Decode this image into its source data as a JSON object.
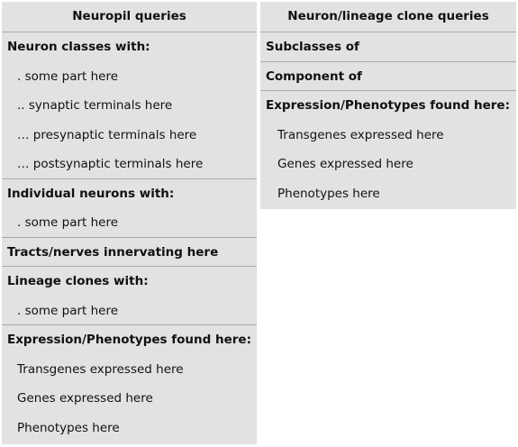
{
  "left": {
    "header": "Neuropil queries",
    "rows": [
      {
        "label": "Neuron classes with:",
        "kind": "bold"
      },
      {
        "label": ". some part here",
        "kind": "sub"
      },
      {
        "label": ".. synaptic terminals here",
        "kind": "sub"
      },
      {
        "label": "… presynaptic terminals here",
        "kind": "sub"
      },
      {
        "label": "… postsynaptic terminals here",
        "kind": "sub"
      },
      {
        "label": "Individual neurons with:",
        "kind": "bold"
      },
      {
        "label": ". some part here",
        "kind": "sub"
      },
      {
        "label": "Tracts/nerves innervating here",
        "kind": "bold"
      },
      {
        "label": "Lineage clones with:",
        "kind": "bold"
      },
      {
        "label": ". some part here",
        "kind": "sub"
      },
      {
        "label": "Expression/Phenotypes found here:",
        "kind": "bold"
      },
      {
        "label": "Transgenes expressed here",
        "kind": "sub"
      },
      {
        "label": "Genes expressed here",
        "kind": "sub"
      },
      {
        "label": "Phenotypes here",
        "kind": "sub"
      }
    ]
  },
  "right": {
    "header": "Neuron/lineage clone queries",
    "rows": [
      {
        "label": "Subclasses of",
        "kind": "bold"
      },
      {
        "label": "Component of",
        "kind": "bold"
      },
      {
        "label": "Expression/Phenotypes found here:",
        "kind": "bold"
      },
      {
        "label": "Transgenes expressed here",
        "kind": "sub"
      },
      {
        "label": "Genes expressed here",
        "kind": "sub"
      },
      {
        "label": "Phenotypes here",
        "kind": "sub"
      }
    ]
  },
  "colors": {
    "panel_bg": "#e2e2e2",
    "divider": "#a9a9a9",
    "text": "#111111"
  }
}
